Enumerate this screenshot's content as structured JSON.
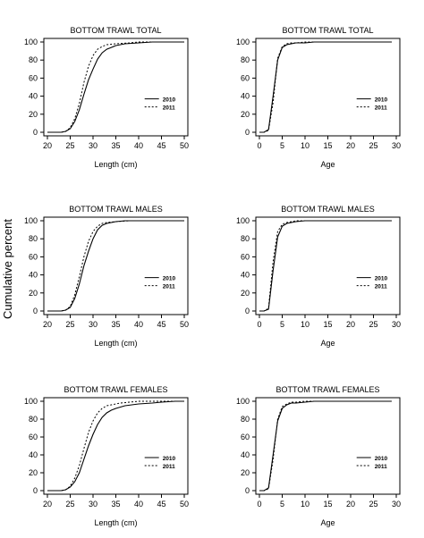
{
  "figure": {
    "ylabel": "Cumulative percent"
  },
  "chart_data": [
    {
      "type": "line",
      "title": "BOTTOM TRAWL TOTAL",
      "xlabel": "Length (cm)",
      "ylabel": "",
      "xlim": [
        20,
        50
      ],
      "ylim": [
        0,
        100
      ],
      "xticks": [
        "20",
        "25",
        "30",
        "35",
        "40",
        "45",
        "50"
      ],
      "yticks": [
        "0",
        "20",
        "40",
        "60",
        "80",
        "100"
      ],
      "legend_position": "right-center",
      "series": [
        {
          "name": "2010",
          "style": "solid",
          "x": [
            20,
            23,
            24,
            25,
            26,
            27,
            28,
            29,
            30,
            31,
            32,
            33,
            34,
            35,
            37,
            40,
            43,
            45,
            50
          ],
          "y": [
            0,
            0,
            1,
            4,
            12,
            25,
            42,
            58,
            70,
            81,
            88,
            92,
            94,
            96,
            98,
            99,
            100,
            100,
            100
          ]
        },
        {
          "name": "2011",
          "style": "dotted",
          "x": [
            20,
            23,
            24,
            25,
            26,
            27,
            28,
            29,
            30,
            31,
            32,
            33,
            35,
            38,
            40,
            45,
            50
          ],
          "y": [
            0,
            0,
            1,
            5,
            15,
            32,
            55,
            73,
            85,
            92,
            95,
            97,
            98,
            99,
            100,
            100,
            100
          ]
        }
      ]
    },
    {
      "type": "line",
      "title": "BOTTOM TRAWL TOTAL",
      "xlabel": "Age",
      "ylabel": "",
      "xlim": [
        0,
        30
      ],
      "ylim": [
        0,
        100
      ],
      "xticks": [
        "0",
        "5",
        "10",
        "15",
        "20",
        "25",
        "30"
      ],
      "yticks": [
        "0",
        "20",
        "40",
        "60",
        "80",
        "100"
      ],
      "legend_position": "right-center",
      "series": [
        {
          "name": "2010",
          "style": "solid",
          "x": [
            0,
            1,
            2,
            3,
            4,
            5,
            6,
            7,
            8,
            10,
            12,
            15,
            20,
            29
          ],
          "y": [
            0,
            0,
            3,
            40,
            80,
            94,
            97,
            98,
            99,
            99,
            100,
            100,
            100,
            100
          ]
        },
        {
          "name": "2011",
          "style": "dotted",
          "x": [
            0,
            1,
            2,
            3,
            4,
            5,
            6,
            7,
            8,
            10,
            15,
            20,
            29
          ],
          "y": [
            0,
            0,
            2,
            33,
            82,
            95,
            98,
            99,
            99,
            100,
            100,
            100,
            100
          ]
        }
      ]
    },
    {
      "type": "line",
      "title": "BOTTOM TRAWL MALES",
      "xlabel": "Length (cm)",
      "ylabel": "",
      "xlim": [
        20,
        50
      ],
      "ylim": [
        0,
        100
      ],
      "xticks": [
        "20",
        "25",
        "30",
        "35",
        "40",
        "45",
        "50"
      ],
      "yticks": [
        "0",
        "20",
        "40",
        "60",
        "80",
        "100"
      ],
      "legend_position": "right-center",
      "series": [
        {
          "name": "2010",
          "style": "solid",
          "x": [
            20,
            23,
            24,
            25,
            26,
            27,
            28,
            29,
            30,
            31,
            32,
            33,
            34,
            35,
            37,
            40,
            45,
            50
          ],
          "y": [
            0,
            0,
            1,
            4,
            14,
            30,
            50,
            66,
            80,
            90,
            95,
            97,
            98,
            99,
            100,
            100,
            100,
            100
          ]
        },
        {
          "name": "2011",
          "style": "dotted",
          "x": [
            20,
            23,
            24,
            25,
            26,
            27,
            28,
            29,
            30,
            31,
            32,
            33,
            35,
            38,
            40,
            45,
            50
          ],
          "y": [
            0,
            0,
            1,
            5,
            18,
            38,
            60,
            77,
            88,
            94,
            97,
            98,
            99,
            100,
            100,
            100,
            100
          ]
        }
      ]
    },
    {
      "type": "line",
      "title": "BOTTOM TRAWL MALES",
      "xlabel": "Age",
      "ylabel": "",
      "xlim": [
        0,
        30
      ],
      "ylim": [
        0,
        100
      ],
      "xticks": [
        "0",
        "5",
        "10",
        "15",
        "20",
        "25",
        "30"
      ],
      "yticks": [
        "0",
        "20",
        "40",
        "60",
        "80",
        "100"
      ],
      "legend_position": "right-center",
      "series": [
        {
          "name": "2010",
          "style": "solid",
          "x": [
            0,
            1,
            2,
            3,
            4,
            5,
            6,
            7,
            8,
            10,
            15,
            20,
            29
          ],
          "y": [
            0,
            0,
            2,
            45,
            82,
            94,
            97,
            98,
            99,
            100,
            100,
            100,
            100
          ]
        },
        {
          "name": "2011",
          "style": "dotted",
          "x": [
            0,
            1,
            2,
            3,
            4,
            5,
            6,
            7,
            8,
            10,
            15,
            20,
            29
          ],
          "y": [
            0,
            0,
            3,
            55,
            88,
            96,
            98,
            99,
            100,
            100,
            100,
            100,
            100
          ]
        }
      ]
    },
    {
      "type": "line",
      "title": "BOTTOM TRAWL FEMALES",
      "xlabel": "Length (cm)",
      "ylabel": "",
      "xlim": [
        20,
        50
      ],
      "ylim": [
        0,
        100
      ],
      "xticks": [
        "20",
        "25",
        "30",
        "35",
        "40",
        "45",
        "50"
      ],
      "yticks": [
        "0",
        "20",
        "40",
        "60",
        "80",
        "100"
      ],
      "legend_position": "right-center",
      "series": [
        {
          "name": "2010",
          "style": "solid",
          "x": [
            20,
            23,
            24,
            25,
            26,
            27,
            28,
            29,
            30,
            31,
            32,
            33,
            34,
            35,
            37,
            40,
            43,
            45,
            48,
            50
          ],
          "y": [
            0,
            0,
            1,
            4,
            10,
            20,
            35,
            50,
            63,
            74,
            82,
            87,
            90,
            92,
            95,
            97,
            98,
            99,
            100,
            100
          ]
        },
        {
          "name": "2011",
          "style": "dotted",
          "x": [
            20,
            23,
            24,
            25,
            26,
            27,
            28,
            29,
            30,
            31,
            32,
            33,
            34,
            36,
            38,
            40,
            45,
            50
          ],
          "y": [
            0,
            0,
            1,
            5,
            14,
            28,
            47,
            65,
            78,
            87,
            92,
            95,
            96,
            98,
            99,
            100,
            100,
            100
          ]
        }
      ]
    },
    {
      "type": "line",
      "title": "BOTTOM TRAWL FEMALES",
      "xlabel": "Age",
      "ylabel": "",
      "xlim": [
        0,
        30
      ],
      "ylim": [
        0,
        100
      ],
      "xticks": [
        "0",
        "5",
        "10",
        "15",
        "20",
        "25",
        "30"
      ],
      "yticks": [
        "0",
        "20",
        "40",
        "60",
        "80",
        "100"
      ],
      "legend_position": "right-center",
      "series": [
        {
          "name": "2010",
          "style": "solid",
          "x": [
            0,
            1,
            2,
            3,
            4,
            5,
            6,
            7,
            8,
            10,
            12,
            15,
            20,
            29
          ],
          "y": [
            0,
            0,
            3,
            40,
            78,
            92,
            96,
            98,
            98,
            99,
            100,
            100,
            100,
            100
          ]
        },
        {
          "name": "2011",
          "style": "dotted",
          "x": [
            0,
            1,
            2,
            3,
            4,
            5,
            6,
            7,
            8,
            10,
            15,
            20,
            29
          ],
          "y": [
            0,
            0,
            2,
            35,
            80,
            94,
            97,
            99,
            99,
            100,
            100,
            100,
            100
          ]
        }
      ]
    }
  ]
}
